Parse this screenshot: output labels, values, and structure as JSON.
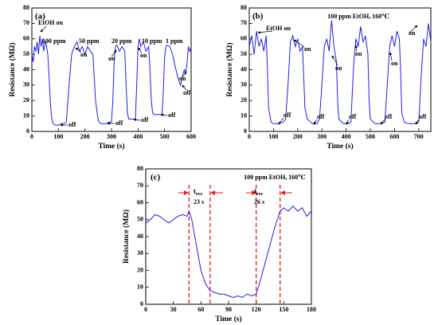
{
  "chart_data": [
    {
      "type": "line",
      "color": "#1f1fe6",
      "xlabel": "Time (s)",
      "ylabel": "Resistance (MΩ)",
      "xlim": [
        0,
        600
      ],
      "xticks": [
        0,
        100,
        200,
        300,
        400,
        500,
        600
      ],
      "ylim": [
        0,
        80
      ],
      "yticks": [
        0,
        10,
        20,
        30,
        40,
        50,
        60,
        70,
        80
      ],
      "annotations": [
        "(a)",
        "EtOH on",
        "100 ppm",
        "50 ppm",
        "20 ppm",
        "10 ppm",
        "1 ppm",
        "on",
        "on",
        "on",
        "on",
        "off",
        "off",
        "off",
        "off",
        "off"
      ],
      "x": [
        0,
        5,
        10,
        15,
        20,
        25,
        30,
        35,
        40,
        45,
        50,
        55,
        60,
        65,
        70,
        75,
        80,
        90,
        100,
        110,
        120,
        130,
        140,
        150,
        160,
        170,
        180,
        190,
        200,
        210,
        220,
        230,
        240,
        250,
        260,
        270,
        280,
        290,
        300,
        305,
        310,
        315,
        320,
        330,
        340,
        350,
        355,
        360,
        365,
        370,
        380,
        390,
        395,
        400,
        405,
        410,
        420,
        430,
        440,
        445,
        450,
        455,
        460,
        470,
        480,
        490,
        495,
        500,
        505,
        510,
        520,
        530,
        540,
        550,
        560,
        570,
        575,
        580,
        585,
        590,
        595,
        600
      ],
      "values": [
        50,
        45,
        55,
        52,
        58,
        50,
        62,
        55,
        60,
        52,
        58,
        56,
        50,
        35,
        18,
        8,
        5,
        4,
        4,
        5,
        5,
        6,
        30,
        50,
        55,
        58,
        52,
        55,
        50,
        55,
        52,
        50,
        20,
        7,
        5,
        5,
        5,
        6,
        6,
        20,
        45,
        55,
        56,
        52,
        55,
        52,
        30,
        12,
        8,
        8,
        8,
        8,
        30,
        55,
        60,
        55,
        58,
        52,
        55,
        40,
        20,
        12,
        11,
        11,
        11,
        11,
        25,
        48,
        55,
        56,
        55,
        50,
        42,
        35,
        30,
        38,
        40,
        38,
        45,
        55,
        52,
        54
      ]
    },
    {
      "type": "line",
      "color": "#1f1fe6",
      "xlabel": "Time (s)",
      "ylabel": "Resistance (MΩ)",
      "xlim": [
        0,
        750
      ],
      "xticks": [
        0,
        100,
        200,
        300,
        400,
        500,
        600,
        700
      ],
      "ylim": [
        0,
        80
      ],
      "yticks": [
        0,
        10,
        20,
        30,
        40,
        50,
        60,
        70,
        80
      ],
      "annotations": [
        "(b)",
        "100 ppm EtOH, 160℃",
        "EtOH on",
        "on",
        "on",
        "on",
        "on",
        "on",
        "off",
        "off",
        "off",
        "off",
        "off"
      ],
      "x": [
        0,
        10,
        20,
        30,
        40,
        50,
        60,
        70,
        75,
        80,
        90,
        100,
        120,
        140,
        150,
        160,
        170,
        180,
        190,
        200,
        210,
        220,
        225,
        230,
        240,
        260,
        280,
        290,
        300,
        310,
        320,
        330,
        340,
        350,
        360,
        365,
        370,
        390,
        410,
        420,
        430,
        440,
        450,
        460,
        470,
        480,
        490,
        495,
        500,
        520,
        540,
        560,
        570,
        580,
        590,
        600,
        610,
        620,
        625,
        630,
        640,
        660,
        680,
        700,
        710,
        720,
        730,
        740,
        750
      ],
      "values": [
        55,
        62,
        50,
        65,
        55,
        60,
        52,
        62,
        40,
        15,
        6,
        5,
        5,
        6,
        8,
        30,
        58,
        62,
        55,
        60,
        52,
        55,
        35,
        15,
        8,
        5,
        5,
        8,
        30,
        55,
        60,
        52,
        72,
        55,
        45,
        20,
        8,
        5,
        5,
        6,
        40,
        60,
        55,
        68,
        58,
        62,
        50,
        20,
        8,
        5,
        5,
        6,
        30,
        55,
        62,
        55,
        65,
        60,
        40,
        12,
        6,
        5,
        5,
        6,
        35,
        60,
        55,
        70,
        58
      ]
    },
    {
      "type": "line",
      "color": "#1f1fe6",
      "xlabel": "Time (s)",
      "ylabel": "Resistance (MΩ)",
      "xlim": [
        0,
        180
      ],
      "xticks": [
        0,
        30,
        60,
        90,
        120,
        150,
        180
      ],
      "ylim": [
        0,
        80
      ],
      "yticks": [
        0,
        10,
        20,
        30,
        40,
        50,
        60,
        70,
        80
      ],
      "vlines": [
        47,
        70,
        120,
        146
      ],
      "vline_color": "#e41a1c",
      "annotations": [
        "(c)",
        "100 ppm EtOH, 160℃",
        {
          "text": "t",
          "sub": "res"
        },
        "23 s",
        {
          "text": "t",
          "sub": "rec"
        },
        "26 s"
      ],
      "x": [
        0,
        5,
        10,
        15,
        20,
        25,
        30,
        35,
        40,
        45,
        47,
        50,
        55,
        60,
        65,
        70,
        75,
        80,
        85,
        90,
        95,
        100,
        105,
        110,
        115,
        120,
        125,
        130,
        135,
        140,
        146,
        150,
        155,
        160,
        165,
        170,
        175,
        180
      ],
      "values": [
        48,
        50,
        53,
        52,
        50,
        48,
        50,
        52,
        53,
        52,
        55,
        50,
        35,
        20,
        12,
        8,
        7,
        6,
        6,
        5,
        4,
        5,
        4,
        6,
        5,
        6,
        15,
        25,
        35,
        45,
        55,
        57,
        55,
        58,
        55,
        57,
        52,
        55
      ]
    }
  ]
}
